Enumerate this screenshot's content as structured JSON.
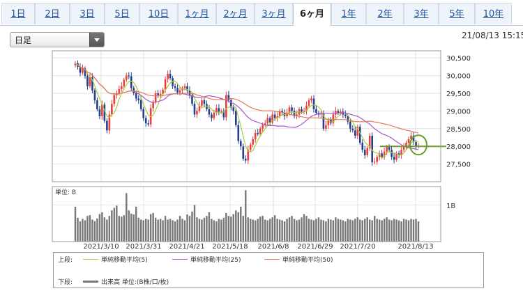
{
  "tabs": [
    "1日",
    "2日",
    "3日",
    "5日",
    "10日",
    "1ヶ月",
    "2ヶ月",
    "3ヶ月",
    "6ヶ月",
    "1年",
    "2年",
    "3年",
    "5年",
    "10年"
  ],
  "active_tab": "6ヶ月",
  "period_select": {
    "selected": "日足"
  },
  "timestamp": "21/08/13 15:15",
  "legend": {
    "upper_label": "上段:",
    "lower_label": "下段:",
    "ma5": "単純移動平均(5)",
    "ma25": "単純移動平均(25)",
    "ma50": "単純移動平均(50)",
    "volume": "出来高 単位:(B株/口/枚)"
  },
  "colors": {
    "up": "#e8403a",
    "down": "#243f8f",
    "ma5": "#a8cc40",
    "ma25": "#aa55cc",
    "ma50": "#e27a55",
    "volume": "#777777",
    "highlight": "#6a9a2a"
  },
  "chart_data": {
    "type": "candlestick",
    "price_ylim": [
      27000,
      30700
    ],
    "price_ticks": [
      "30,500",
      "30,000",
      "29,500",
      "29,000",
      "28,500",
      "28,000",
      "27,500"
    ],
    "price_tick_values": [
      30500,
      30000,
      29500,
      29000,
      28500,
      28000,
      27500
    ],
    "x_tick_labels": [
      "2021/3/10",
      "2021/3/31",
      "2021/4/21",
      "2021/5/18",
      "2021/6/8",
      "2021/6/29",
      "2021/7/20",
      "2021/8/13"
    ],
    "highlight_price": 28000,
    "volume_unit_label": "単位: B",
    "volume_tick_label": "1B",
    "volume_tick_value": 1.0,
    "volume_ylim": [
      0,
      1.5
    ],
    "closes": [
      30350,
      30250,
      30080,
      30200,
      29990,
      29700,
      29950,
      29580,
      29300,
      29050,
      28850,
      29180,
      28720,
      28450,
      28900,
      29200,
      29450,
      29500,
      29620,
      29700,
      29880,
      30000,
      29980,
      29650,
      29500,
      29350,
      29300,
      29050,
      28800,
      28650,
      28620,
      29080,
      29250,
      29500,
      29450,
      29480,
      29600,
      29900,
      30050,
      29930,
      29700,
      29650,
      29520,
      29580,
      29640,
      29700,
      29580,
      29450,
      29200,
      28900,
      29000,
      29150,
      29300,
      29200,
      29050,
      28900,
      28800,
      28950,
      29080,
      28980,
      29000,
      28820,
      29450,
      29300,
      29100,
      29000,
      28600,
      28150,
      28000,
      27650,
      27600,
      27900,
      28050,
      28200,
      28380,
      28350,
      28500,
      28600,
      28650,
      28800,
      28680,
      28900,
      28800,
      28850,
      29000,
      28950,
      28850,
      28950,
      29100,
      29000,
      28850,
      28900,
      29050,
      28980,
      29000,
      29150,
      29300,
      29350,
      29050,
      28950,
      28900,
      28920,
      28500,
      28600,
      28750,
      28650,
      28900,
      29000,
      28950,
      28980,
      28900,
      28850,
      28700,
      28500,
      28450,
      28300,
      28550,
      28100,
      27900,
      27750,
      27950,
      28300,
      27550,
      27560,
      27700,
      27800,
      27700,
      27850,
      27980,
      27900,
      27700,
      27620,
      27800,
      27750,
      27900,
      27980,
      28100,
      28200,
      28300,
      28120,
      28000,
      28020
    ],
    "volumes": [
      0.95,
      0.65,
      0.55,
      0.62,
      0.58,
      0.7,
      0.72,
      0.6,
      0.56,
      0.63,
      0.75,
      0.8,
      0.66,
      0.6,
      0.7,
      0.85,
      0.92,
      0.98,
      0.7,
      0.68,
      0.72,
      1.32,
      0.85,
      0.76,
      0.74,
      0.95,
      0.65,
      0.6,
      0.58,
      0.62,
      0.6,
      0.75,
      0.78,
      0.65,
      0.6,
      0.62,
      0.58,
      0.7,
      0.6,
      0.62,
      0.58,
      0.55,
      0.6,
      0.7,
      0.62,
      0.58,
      0.74,
      0.7,
      0.82,
      1.0,
      0.66,
      0.62,
      0.6,
      0.65,
      0.7,
      0.8,
      0.62,
      0.58,
      0.55,
      0.62,
      0.6,
      0.65,
      0.78,
      0.7,
      0.68,
      0.75,
      0.85,
      0.8,
      0.95,
      0.7,
      1.4,
      0.66,
      0.62,
      0.6,
      0.58,
      0.62,
      0.68,
      0.7,
      0.6,
      0.58,
      0.62,
      0.66,
      0.72,
      0.62,
      0.6,
      0.58,
      0.55,
      0.62,
      0.66,
      0.7,
      0.62,
      0.58,
      0.6,
      0.66,
      0.75,
      0.7,
      0.62,
      0.6,
      0.58,
      0.62,
      0.66,
      0.6,
      0.58,
      0.55,
      0.62,
      0.6,
      0.58,
      0.66,
      0.62,
      0.6,
      0.58,
      0.55,
      0.62,
      0.6,
      0.58,
      0.62,
      0.66,
      0.6,
      0.58,
      0.62,
      0.66,
      0.6,
      0.58,
      0.7,
      0.62,
      0.6,
      0.58,
      0.62,
      0.66,
      0.6,
      0.58,
      0.62,
      0.6,
      0.58,
      0.55,
      0.62,
      0.6,
      0.58,
      0.62,
      0.6,
      0.62,
      0.55
    ]
  }
}
